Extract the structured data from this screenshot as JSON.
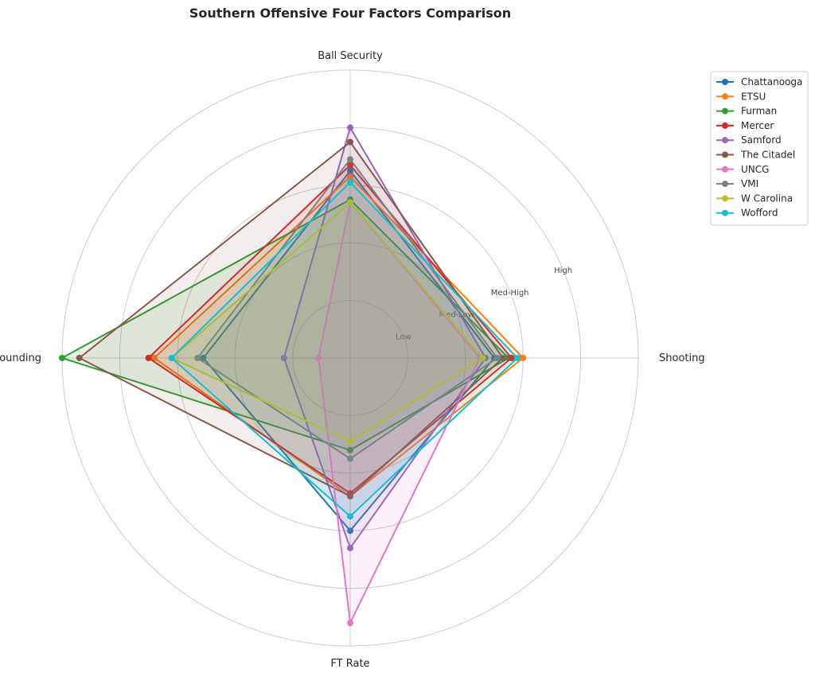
{
  "chart_data": {
    "type": "radar",
    "title": "Southern Offensive Four Factors Comparison",
    "axes": [
      "Shooting",
      "Ball Security",
      "Off Rebounding",
      "FT Rate"
    ],
    "ring_labels": [
      "Low",
      "Med-Low",
      "Med-High",
      "High"
    ],
    "rlim": [
      0,
      1
    ],
    "grid": true,
    "legend_position": "top-right",
    "series": [
      {
        "name": "Chattanooga",
        "color": "#1f77b4",
        "values": [
          0.5,
          0.65,
          0.51,
          0.6
        ]
      },
      {
        "name": "ETSU",
        "color": "#ff7f0e",
        "values": [
          0.6,
          0.63,
          0.68,
          0.48
        ]
      },
      {
        "name": "Furman",
        "color": "#2ca02c",
        "values": [
          0.55,
          0.55,
          1.0,
          0.32
        ]
      },
      {
        "name": "Mercer",
        "color": "#d62728",
        "values": [
          0.56,
          0.67,
          0.7,
          0.47
        ]
      },
      {
        "name": "Samford",
        "color": "#9467bd",
        "values": [
          0.47,
          0.8,
          0.23,
          0.66
        ]
      },
      {
        "name": "The Citadel",
        "color": "#8c564b",
        "values": [
          0.53,
          0.75,
          0.94,
          0.48
        ]
      },
      {
        "name": "UNCG",
        "color": "#e377c2",
        "values": [
          0.45,
          0.54,
          0.11,
          0.92
        ]
      },
      {
        "name": "VMI",
        "color": "#7f7f7f",
        "values": [
          0.51,
          0.69,
          0.53,
          0.35
        ]
      },
      {
        "name": "W Carolina",
        "color": "#bcbd22",
        "values": [
          0.46,
          0.54,
          0.62,
          0.29
        ]
      },
      {
        "name": "Wofford",
        "color": "#17becf",
        "values": [
          0.58,
          0.61,
          0.62,
          0.55
        ]
      }
    ]
  }
}
